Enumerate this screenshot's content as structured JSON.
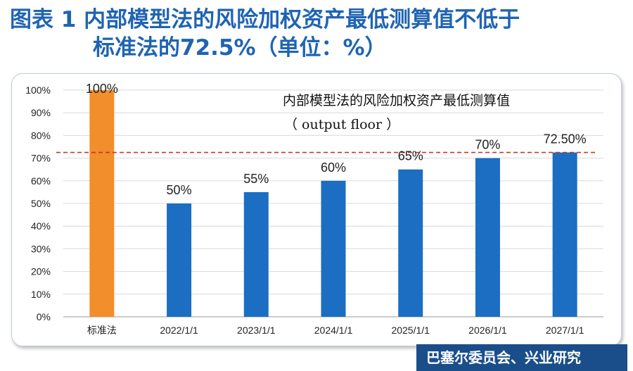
{
  "title": {
    "line1": "图表 1  内部模型法的风险加权资产最低测算值不低于",
    "line2": "标准法的72.5%（单位：%）"
  },
  "source": "巴塞尔委员会、兴业研究",
  "colors": {
    "title": "#1f64b2",
    "orange_bar": "#f28e2b",
    "blue_bar": "#1b6ec2",
    "ref_line": "#c0392b",
    "source_bg": "#1a4e8a"
  },
  "chart_data": {
    "type": "bar",
    "categories": [
      "标准法",
      "2022/1/1",
      "2023/1/1",
      "2024/1/1",
      "2025/1/1",
      "2026/1/1",
      "2027/1/1"
    ],
    "values": [
      100,
      50,
      55,
      60,
      65,
      70,
      72.5
    ],
    "data_labels": [
      "100%",
      "50%",
      "55%",
      "60%",
      "65%",
      "70%",
      "72.50%"
    ],
    "bar_colors": [
      "#f28e2b",
      "#1b6ec2",
      "#1b6ec2",
      "#1b6ec2",
      "#1b6ec2",
      "#1b6ec2",
      "#1b6ec2"
    ],
    "ylim": [
      0,
      100
    ],
    "y_ticks": [
      "0%",
      "10%",
      "20%",
      "30%",
      "40%",
      "50%",
      "60%",
      "70%",
      "80%",
      "90%",
      "100%"
    ],
    "grid": true,
    "reference_line": {
      "value": 72.5,
      "style": "dashed"
    },
    "annotation": {
      "line1": "内部模型法的风险加权资产最低测算值",
      "line2": "（ output floor ）"
    }
  }
}
